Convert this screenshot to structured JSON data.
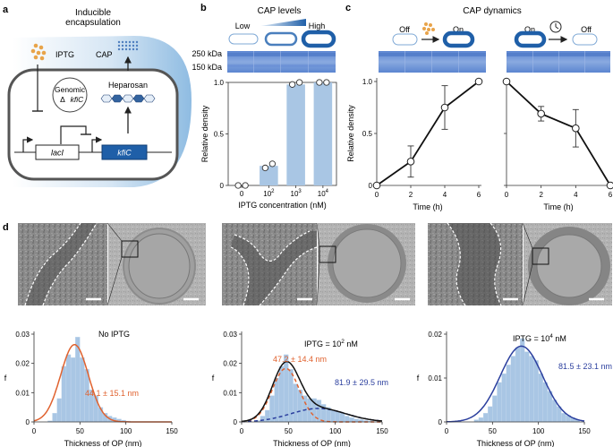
{
  "panels": {
    "a": {
      "letter": "a",
      "title_line1": "Inducible",
      "title_line2": "encapsulation",
      "iptg": "IPTG",
      "cap": "CAP",
      "genomic": "Genomic",
      "delta_gene": "Δ",
      "gene": "kfiC",
      "heparosan": "Heparosan",
      "laci": "lacI",
      "kfic": "kfiC"
    },
    "b": {
      "letter": "b",
      "title": "CAP levels",
      "low": "Low",
      "high": "High",
      "mw_250": "250 kDa",
      "mw_150": "150 kDa"
    },
    "c": {
      "letter": "c",
      "title": "CAP dynamics",
      "off1": "Off",
      "on1": "On",
      "on2": "On",
      "off2": "Off"
    },
    "d": {
      "letter": "d",
      "xlabel": "Thickness of OP (nm)",
      "ylabel": "f",
      "plot1_label": "No IPTG",
      "plot1_fit": "44.1 ± 15.1 nm",
      "plot2_label_pre": "IPTG = 10",
      "plot2_label_exp": "2",
      "plot2_label_post": " nM",
      "plot2_fit1": "47.2 ± 14.4 nm",
      "plot2_fit2": "81.9 ± 29.5 nm",
      "plot3_label_pre": "IPTG = 10",
      "plot3_label_exp": "4",
      "plot3_label_post": " nM",
      "plot3_fit": "81.5 ± 23.1 nm"
    }
  },
  "colors": {
    "bar": "#a9c6e4",
    "dark_blue": "#1f5fa8",
    "orange": "#e0622f",
    "navy": "#2b3f9e",
    "iptg_dot": "#e8a44a"
  },
  "chart_data": [
    {
      "id": "b-bar",
      "type": "bar",
      "categories": [
        "0",
        "10^2",
        "10^3",
        "10^4"
      ],
      "values": [
        0,
        0.19,
        0.98,
        1.0
      ],
      "replicates": [
        [
          0,
          0
        ],
        [
          0.17,
          0.21
        ],
        [
          0.98,
          1.0
        ],
        [
          1.0,
          1.0
        ]
      ],
      "xlabel": "IPTG concentration (nM)",
      "ylabel": "Relative density",
      "ylim": [
        0,
        1
      ],
      "yticks": [
        0,
        0.5,
        1.0
      ],
      "ytick_labels": [
        "0",
        "0.5",
        "1.0"
      ],
      "xtick_base": "10",
      "xtick_exp": [
        "",
        "2",
        "3",
        "4"
      ]
    },
    {
      "id": "c-on",
      "type": "line",
      "x": [
        0,
        2,
        4,
        6
      ],
      "y": [
        0,
        0.23,
        0.75,
        1.0
      ],
      "err": [
        0,
        0.15,
        0.21,
        0
      ],
      "xlabel": "Time (h)",
      "ylabel": "Relative density",
      "xlim": [
        0,
        6
      ],
      "ylim": [
        0,
        1
      ],
      "xticks": [
        0,
        2,
        4,
        6
      ],
      "xtick_labels": [
        "0",
        "2",
        "4",
        "6"
      ],
      "yticks": [
        0,
        0.5,
        1.0
      ],
      "ytick_labels": [
        "0",
        "0.5",
        "1.0"
      ]
    },
    {
      "id": "c-off",
      "type": "line",
      "x": [
        0,
        2,
        4,
        6
      ],
      "y": [
        1.0,
        0.69,
        0.55,
        0
      ],
      "err": [
        0,
        0.07,
        0.18,
        0
      ],
      "xlabel": "Time (h)",
      "ylabel": "",
      "xlim": [
        0,
        6
      ],
      "ylim": [
        0,
        1
      ],
      "xticks": [
        0,
        2,
        4,
        6
      ],
      "xtick_labels": [
        "0",
        "2",
        "4",
        "6"
      ],
      "yticks": [
        0,
        0.5,
        1.0
      ],
      "ytick_labels": [
        "",
        "",
        ""
      ]
    },
    {
      "id": "d-hist1",
      "type": "histogram",
      "bin_width": 5,
      "bin_starts": [
        15,
        20,
        25,
        30,
        35,
        40,
        45,
        50,
        55,
        60,
        65,
        70,
        75,
        80,
        85,
        90,
        95,
        100
      ],
      "heights": [
        0.0004,
        0.003,
        0.008,
        0.019,
        0.023,
        0.022,
        0.029,
        0.022,
        0.018,
        0.011,
        0.009,
        0.005,
        0.003,
        0.002,
        0.0015,
        0.001,
        0.0006,
        0.0003
      ],
      "fits": [
        {
          "kind": "gaussian",
          "mean": 44.1,
          "sd": 15.1,
          "weight": 1.0,
          "color": "orange",
          "dashed": false
        }
      ],
      "xlim": [
        0,
        150
      ],
      "ylim": [
        0,
        0.03
      ],
      "xticks": [
        0,
        50,
        100,
        150
      ],
      "yticks": [
        0,
        0.01,
        0.02,
        0.03
      ],
      "ytick_labels": [
        "0",
        "0.01",
        "0.02",
        "0.03"
      ]
    },
    {
      "id": "d-hist2",
      "type": "histogram",
      "bin_width": 5,
      "bin_starts": [
        15,
        20,
        25,
        30,
        35,
        40,
        45,
        50,
        55,
        60,
        65,
        70,
        75,
        80,
        85,
        90,
        95,
        100,
        105,
        110,
        115,
        120,
        125,
        130,
        135
      ],
      "heights": [
        0.0005,
        0.002,
        0.004,
        0.009,
        0.015,
        0.019,
        0.023,
        0.018,
        0.013,
        0.011,
        0.009,
        0.008,
        0.008,
        0.0075,
        0.006,
        0.005,
        0.004,
        0.0035,
        0.003,
        0.002,
        0.0015,
        0.001,
        0.0008,
        0.0005,
        0.0003
      ],
      "fits": [
        {
          "kind": "gaussian",
          "mean": 47.2,
          "sd": 14.4,
          "weight": 0.66,
          "color": "orange",
          "dashed": true
        },
        {
          "kind": "gaussian",
          "mean": 81.9,
          "sd": 29.5,
          "weight": 0.34,
          "color": "navy",
          "dashed": true
        },
        {
          "kind": "sum",
          "color": "black",
          "dashed": false
        }
      ],
      "xlim": [
        0,
        150
      ],
      "ylim": [
        0,
        0.03
      ],
      "xticks": [
        0,
        50,
        100,
        150
      ],
      "yticks": [
        0,
        0.01,
        0.02,
        0.03
      ],
      "ytick_labels": [
        "0",
        "0.01",
        "0.02",
        "0.03"
      ]
    },
    {
      "id": "d-hist3",
      "type": "histogram",
      "bin_width": 5,
      "bin_starts": [
        30,
        35,
        40,
        45,
        50,
        55,
        60,
        65,
        70,
        75,
        80,
        85,
        90,
        95,
        100,
        105,
        110,
        115,
        120,
        125,
        130,
        135,
        140
      ],
      "heights": [
        0.0005,
        0.001,
        0.002,
        0.0035,
        0.006,
        0.009,
        0.011,
        0.013,
        0.015,
        0.017,
        0.019,
        0.016,
        0.015,
        0.014,
        0.011,
        0.009,
        0.007,
        0.005,
        0.0035,
        0.002,
        0.0015,
        0.001,
        0.0005
      ],
      "fits": [
        {
          "kind": "gaussian",
          "mean": 81.5,
          "sd": 23.1,
          "weight": 1.0,
          "color": "navy",
          "dashed": false
        }
      ],
      "xlim": [
        0,
        150
      ],
      "ylim": [
        0,
        0.02
      ],
      "xticks": [
        0,
        50,
        100,
        150
      ],
      "yticks": [
        0,
        0.01,
        0.02
      ],
      "ytick_labels": [
        "0",
        "0.01",
        "0.02"
      ]
    }
  ]
}
